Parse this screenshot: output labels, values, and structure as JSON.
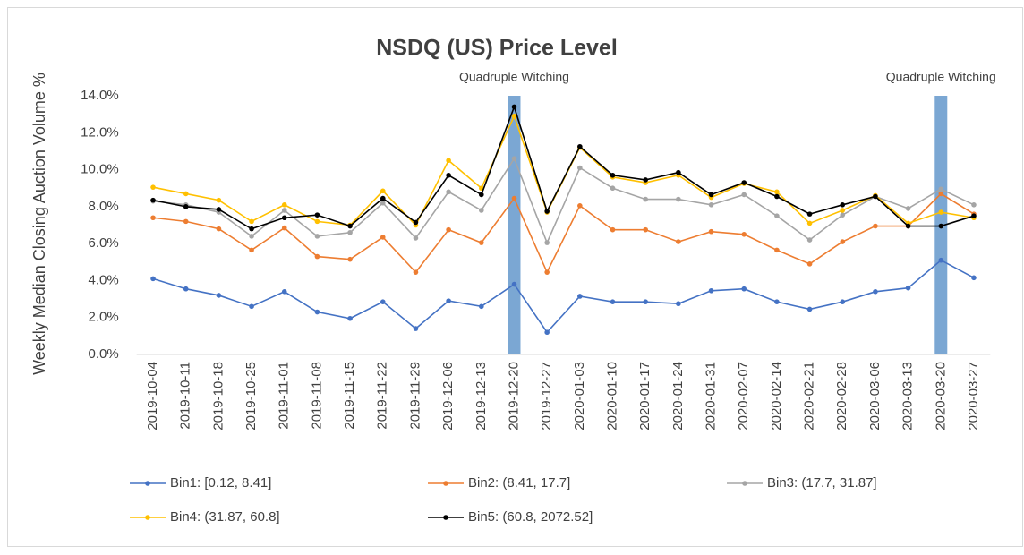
{
  "chart_data": {
    "type": "line",
    "title": "NSDQ (US) Price Level",
    "y_label": "Weekly Median Closing Auction Volume %",
    "categories": [
      "2019-10-04",
      "2019-10-11",
      "2019-10-18",
      "2019-10-25",
      "2019-11-01",
      "2019-11-08",
      "2019-11-15",
      "2019-11-22",
      "2019-11-29",
      "2019-12-06",
      "2019-12-13",
      "2019-12-20",
      "2019-12-27",
      "2020-01-03",
      "2020-01-10",
      "2020-01-17",
      "2020-01-24",
      "2020-01-31",
      "2020-02-07",
      "2020-02-14",
      "2020-02-21",
      "2020-02-28",
      "2020-03-06",
      "2020-03-13",
      "2020-03-20",
      "2020-03-27"
    ],
    "series": [
      {
        "name": "Bin1: [0.12, 8.41]",
        "color": "#4472c4",
        "values": [
          4.1,
          3.55,
          3.2,
          2.6,
          3.4,
          2.3,
          1.95,
          2.85,
          1.4,
          2.9,
          2.6,
          3.8,
          1.2,
          3.15,
          2.85,
          2.85,
          2.75,
          3.45,
          3.55,
          2.85,
          2.45,
          2.85,
          3.4,
          3.6,
          5.1,
          4.15
        ]
      },
      {
        "name": "Bin2: (8.41, 17.7]",
        "color": "#ed7d31",
        "values": [
          7.4,
          7.2,
          6.8,
          5.65,
          6.85,
          5.3,
          5.15,
          6.35,
          4.45,
          6.75,
          6.05,
          8.45,
          4.45,
          8.05,
          6.75,
          6.75,
          6.1,
          6.65,
          6.5,
          5.65,
          4.9,
          6.1,
          6.95,
          6.95,
          8.7,
          7.6
        ]
      },
      {
        "name": "Bin3: (17.7, 31.87]",
        "color": "#a5a5a5",
        "values": [
          8.3,
          8.1,
          7.7,
          6.4,
          7.8,
          6.4,
          6.6,
          8.2,
          6.3,
          8.8,
          7.8,
          10.6,
          6.05,
          10.1,
          9.0,
          8.4,
          8.4,
          8.1,
          8.65,
          7.5,
          6.2,
          7.55,
          8.55,
          7.9,
          8.95,
          8.1
        ]
      },
      {
        "name": "Bin4: (31.87, 60.8]",
        "color": "#ffc000",
        "values": [
          9.05,
          8.7,
          8.35,
          7.2,
          8.1,
          7.2,
          7.0,
          8.85,
          7.0,
          10.5,
          9.0,
          12.9,
          7.7,
          11.2,
          9.6,
          9.3,
          9.7,
          8.5,
          9.25,
          8.8,
          7.1,
          7.8,
          8.6,
          7.1,
          7.7,
          7.4
        ]
      },
      {
        "name": "Bin5: (60.8, 2072.52]",
        "color": "#000000",
        "values": [
          8.35,
          8.0,
          7.85,
          6.8,
          7.4,
          7.55,
          6.95,
          8.45,
          7.15,
          9.7,
          8.65,
          13.4,
          7.75,
          11.25,
          9.7,
          9.45,
          9.85,
          8.65,
          9.3,
          8.55,
          7.6,
          8.1,
          8.55,
          6.95,
          6.95,
          7.5
        ]
      }
    ],
    "ylim": [
      0,
      14
    ],
    "yticks": [
      {
        "value": 0,
        "label": "0.0%"
      },
      {
        "value": 2,
        "label": "2.0%"
      },
      {
        "value": 4,
        "label": "4.0%"
      },
      {
        "value": 6,
        "label": "6.0%"
      },
      {
        "value": 8,
        "label": "8.0%"
      },
      {
        "value": 10,
        "label": "10.0%"
      },
      {
        "value": 12,
        "label": "12.0%"
      },
      {
        "value": 14,
        "label": "14.0%"
      }
    ],
    "grid": false,
    "legend": "bottom",
    "annotations": [
      {
        "text": "Quadruple Witching",
        "x": "2019-12-20",
        "color": "#7ba7d3"
      },
      {
        "text": "Quadruple Witching",
        "x": "2020-03-20",
        "color": "#7ba7d3"
      }
    ]
  }
}
